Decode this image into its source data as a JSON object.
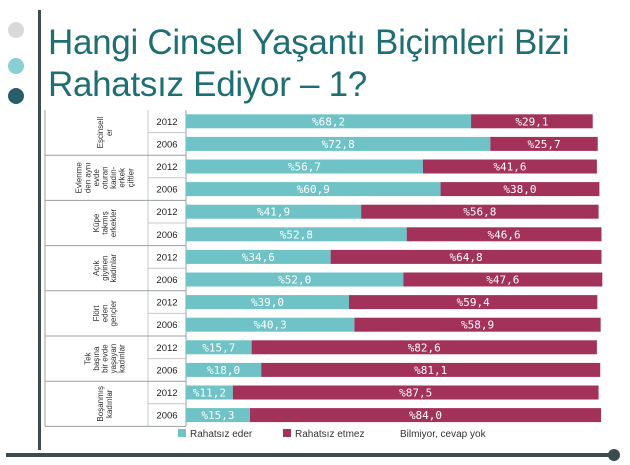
{
  "slide": {
    "title_line1": "Hangi Cinsel Yaşantı Biçimleri Bizi",
    "title_line2": "Rahatsız Ediyor – 1?"
  },
  "colors": {
    "rahatsiz_eder": "#6fc3c7",
    "rahatsiz_etmez": "#a3325a",
    "title": "#1f6e74",
    "bar_text": "#ffffff"
  },
  "chart_data": {
    "type": "bar",
    "orientation": "horizontal",
    "stacked": true,
    "groups": [
      {
        "label": [
          "Eşcinsell",
          "er"
        ],
        "rows": [
          {
            "year": "2012",
            "eder": 68.2,
            "etmez": 29.1,
            "eder_label": "%68,2",
            "etmez_label": "%29,1"
          },
          {
            "year": "2006",
            "eder": 72.8,
            "etmez": 25.7,
            "eder_label": "%72,8",
            "etmez_label": "%25,7"
          }
        ]
      },
      {
        "label": [
          "Evlenme",
          "den aynı",
          "evde",
          "oturan",
          "kadın-",
          "erkek",
          "çiftler"
        ],
        "rows": [
          {
            "year": "2012",
            "eder": 56.7,
            "etmez": 41.6,
            "eder_label": "%56,7",
            "etmez_label": "%41,6"
          },
          {
            "year": "2006",
            "eder": 60.9,
            "etmez": 38.0,
            "eder_label": "%60,9",
            "etmez_label": "%38,0"
          }
        ]
      },
      {
        "label": [
          "Küpe",
          "takmış",
          "erkekler"
        ],
        "rows": [
          {
            "year": "2012",
            "eder": 41.9,
            "etmez": 56.8,
            "eder_label": "%41,9",
            "etmez_label": "%56,8"
          },
          {
            "year": "2006",
            "eder": 52.8,
            "etmez": 46.6,
            "eder_label": "%52,8",
            "etmez_label": "%46,6"
          }
        ]
      },
      {
        "label": [
          "Açık",
          "giyinen",
          "kadınlar"
        ],
        "rows": [
          {
            "year": "2012",
            "eder": 34.6,
            "etmez": 64.8,
            "eder_label": "%34,6",
            "etmez_label": "%64,8"
          },
          {
            "year": "2006",
            "eder": 52.0,
            "etmez": 47.6,
            "eder_label": "%52,0",
            "etmez_label": "%47,6"
          }
        ]
      },
      {
        "label": [
          "Flört",
          "eden",
          "gençler"
        ],
        "rows": [
          {
            "year": "2012",
            "eder": 39.0,
            "etmez": 59.4,
            "eder_label": "%39,0",
            "etmez_label": "%59,4"
          },
          {
            "year": "2006",
            "eder": 40.3,
            "etmez": 58.9,
            "eder_label": "%40,3",
            "etmez_label": "%58,9"
          }
        ]
      },
      {
        "label": [
          "Tek",
          "başına",
          "bir evde",
          "yaşayan",
          "kadınlar"
        ],
        "rows": [
          {
            "year": "2012",
            "eder": 15.7,
            "etmez": 82.6,
            "eder_label": "%15,7",
            "etmez_label": "%82,6"
          },
          {
            "year": "2006",
            "eder": 18.0,
            "etmez": 81.1,
            "eder_label": "%18,0",
            "etmez_label": "%81,1"
          }
        ]
      },
      {
        "label": [
          "Boşanmış",
          "kadınlar"
        ],
        "rows": [
          {
            "year": "2012",
            "eder": 11.2,
            "etmez": 87.5,
            "eder_label": "%11,2",
            "etmez_label": "%87,5"
          },
          {
            "year": "2006",
            "eder": 15.3,
            "etmez": 84.0,
            "eder_label": "%15,3",
            "etmez_label": "%84,0"
          }
        ]
      }
    ],
    "legend": [
      {
        "label": "Rahatsız eder",
        "color": "#6fc3c7"
      },
      {
        "label": "Rahatsız etmez",
        "color": "#a3325a"
      },
      {
        "label": "Bilmiyor, cevap yok",
        "color": ""
      }
    ],
    "xlim": [
      0,
      100
    ],
    "legend_position": "bottom"
  }
}
